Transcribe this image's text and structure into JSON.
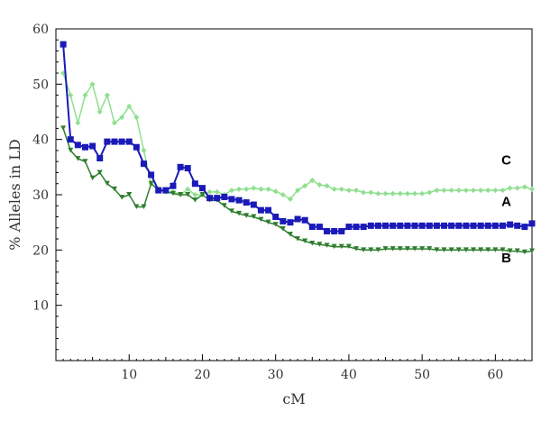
{
  "chart_data": {
    "type": "line",
    "title": "",
    "xlabel": "cM",
    "ylabel": "% Alleles in LD",
    "xlim": [
      0,
      65
    ],
    "ylim": [
      0,
      60
    ],
    "xticks": [
      10,
      20,
      30,
      40,
      50,
      60
    ],
    "yticks": [
      10,
      20,
      30,
      40,
      50,
      60
    ],
    "grid": false,
    "legend": "none",
    "series": [
      {
        "name": "A",
        "color": "#1a1ab8",
        "marker": "square",
        "x": [
          1,
          2,
          3,
          4,
          5,
          6,
          7,
          8,
          9,
          10,
          11,
          12,
          13,
          14,
          15,
          16,
          17,
          18,
          19,
          20,
          21,
          22,
          23,
          24,
          25,
          26,
          27,
          28,
          29,
          30,
          31,
          32,
          33,
          34,
          35,
          36,
          37,
          38,
          39,
          40,
          41,
          42,
          43,
          44,
          45,
          46,
          47,
          48,
          49,
          50,
          51,
          52,
          53,
          54,
          55,
          56,
          57,
          58,
          59,
          60,
          61,
          62,
          63,
          64,
          65
        ],
        "y": [
          57.2,
          40.0,
          39.0,
          38.6,
          38.8,
          36.6,
          39.6,
          39.6,
          39.6,
          39.6,
          38.6,
          35.6,
          33.6,
          30.8,
          30.8,
          31.6,
          35.0,
          34.8,
          32.0,
          31.2,
          29.4,
          29.4,
          29.6,
          29.2,
          29.0,
          28.6,
          28.2,
          27.2,
          27.2,
          26.0,
          25.2,
          25.0,
          25.6,
          25.4,
          24.2,
          24.2,
          23.4,
          23.4,
          23.4,
          24.2,
          24.2,
          24.2,
          24.4,
          24.4,
          24.4,
          24.4,
          24.4,
          24.4,
          24.4,
          24.4,
          24.4,
          24.4,
          24.4,
          24.4,
          24.4,
          24.4,
          24.4,
          24.4,
          24.4,
          24.4,
          24.4,
          24.6,
          24.4,
          24.2,
          24.8
        ]
      },
      {
        "name": "B",
        "color": "#2e7d2e",
        "marker": "triangle",
        "x": [
          1,
          2,
          3,
          4,
          5,
          6,
          7,
          8,
          9,
          10,
          11,
          12,
          13,
          14,
          15,
          16,
          17,
          18,
          19,
          20,
          21,
          22,
          23,
          24,
          25,
          26,
          27,
          28,
          29,
          30,
          31,
          32,
          33,
          34,
          35,
          36,
          37,
          38,
          39,
          40,
          41,
          42,
          43,
          44,
          45,
          46,
          47,
          48,
          49,
          50,
          51,
          52,
          53,
          54,
          55,
          56,
          57,
          58,
          59,
          60,
          61,
          62,
          63,
          64,
          65
        ],
        "y": [
          42.0,
          38.0,
          36.5,
          36.0,
          33.0,
          34.0,
          32.0,
          31.0,
          29.5,
          30.0,
          27.8,
          27.8,
          32.0,
          30.8,
          30.6,
          30.2,
          30.0,
          30.0,
          29.0,
          30.0,
          29.0,
          29.0,
          28.0,
          27.0,
          26.6,
          26.2,
          26.0,
          25.5,
          25.0,
          24.6,
          23.8,
          22.8,
          22.0,
          21.6,
          21.2,
          21.0,
          20.8,
          20.6,
          20.6,
          20.6,
          20.2,
          20.0,
          20.0,
          20.0,
          20.2,
          20.2,
          20.2,
          20.2,
          20.2,
          20.2,
          20.2,
          20.0,
          20.0,
          20.0,
          20.0,
          20.0,
          20.0,
          20.0,
          20.0,
          20.0,
          20.0,
          19.8,
          19.8,
          19.6,
          19.8
        ]
      },
      {
        "name": "C",
        "color": "#8ee08e",
        "marker": "diamond",
        "x": [
          1,
          2,
          3,
          4,
          5,
          6,
          7,
          8,
          9,
          10,
          11,
          12,
          13,
          14,
          15,
          16,
          17,
          18,
          19,
          20,
          21,
          22,
          23,
          24,
          25,
          26,
          27,
          28,
          29,
          30,
          31,
          32,
          33,
          34,
          35,
          36,
          37,
          38,
          39,
          40,
          41,
          42,
          43,
          44,
          45,
          46,
          47,
          48,
          49,
          50,
          51,
          52,
          53,
          54,
          55,
          56,
          57,
          58,
          59,
          60,
          61,
          62,
          63,
          64,
          65
        ],
        "y": [
          52.0,
          48.0,
          43.0,
          48.0,
          50.0,
          45.0,
          48.0,
          43.0,
          44.0,
          46.0,
          44.0,
          38.0,
          32.0,
          31.0,
          30.5,
          30.5,
          30.0,
          31.0,
          30.0,
          30.0,
          30.5,
          30.5,
          30.0,
          30.8,
          31.0,
          31.0,
          31.2,
          31.0,
          31.0,
          30.6,
          30.0,
          29.2,
          30.8,
          31.6,
          32.6,
          31.8,
          31.6,
          31.0,
          31.0,
          30.8,
          30.8,
          30.4,
          30.4,
          30.2,
          30.2,
          30.2,
          30.2,
          30.2,
          30.2,
          30.2,
          30.4,
          30.8,
          30.8,
          30.8,
          30.8,
          30.8,
          30.8,
          30.8,
          30.8,
          30.8,
          30.8,
          31.2,
          31.2,
          31.4,
          31.0
        ]
      }
    ],
    "annotations": [
      {
        "text": "C",
        "x": 61.5,
        "y": 35.5
      },
      {
        "text": "A",
        "x": 61.5,
        "y": 28.0
      },
      {
        "text": "B",
        "x": 61.5,
        "y": 17.8
      }
    ]
  }
}
